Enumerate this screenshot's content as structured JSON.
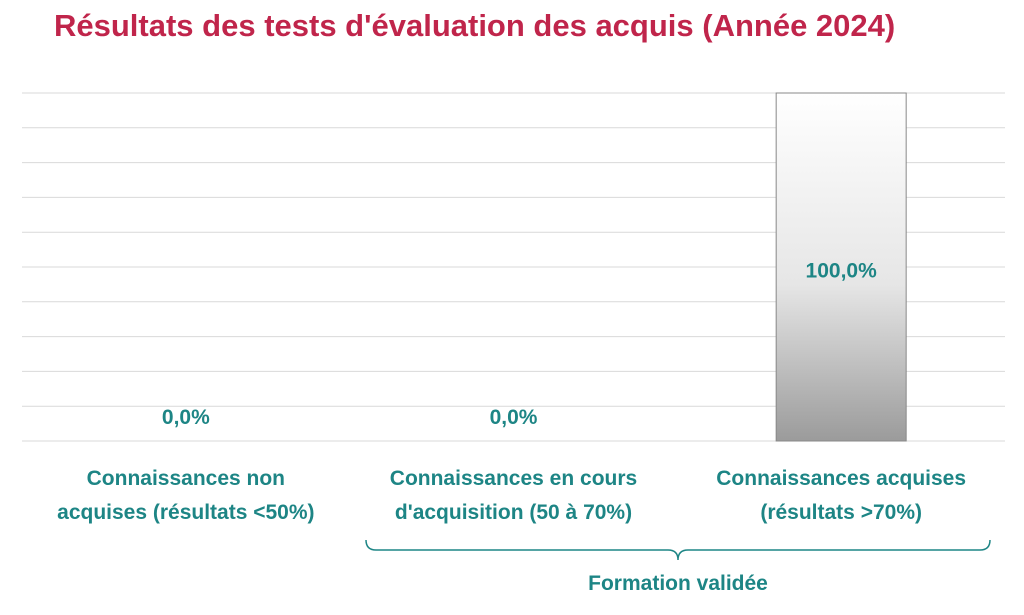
{
  "chart_data": {
    "type": "bar",
    "title": "Résultats des tests d'évaluation des acquis (Année 2024)",
    "categories": [
      "Connaissances non acquises (résultats <50%)",
      "Connaissances en cours d'acquisition (50 à 70%)",
      "Connaissances acquises (résultats >70%)"
    ],
    "category_lines": [
      [
        "Connaissances non",
        "acquises (résultats <50%)"
      ],
      [
        "Connaissances en cours",
        "d'acquisition (50 à 70%)"
      ],
      [
        "Connaissances acquises",
        "(résultats >70%)"
      ]
    ],
    "values": [
      0,
      0,
      100
    ],
    "data_labels": [
      "0,0%",
      "0,0%",
      "100,0%"
    ],
    "ylim": [
      0,
      100
    ],
    "grid": true,
    "group": {
      "label": "Formation validée",
      "categories": [
        1,
        2
      ]
    },
    "colors": {
      "title": "#c0254b",
      "labels": "#1d8585",
      "bar_top": "#ffffff",
      "bar_bottom": "#9b9b9b",
      "bar_border": "#888888",
      "grid": "#d9d9d9"
    }
  }
}
